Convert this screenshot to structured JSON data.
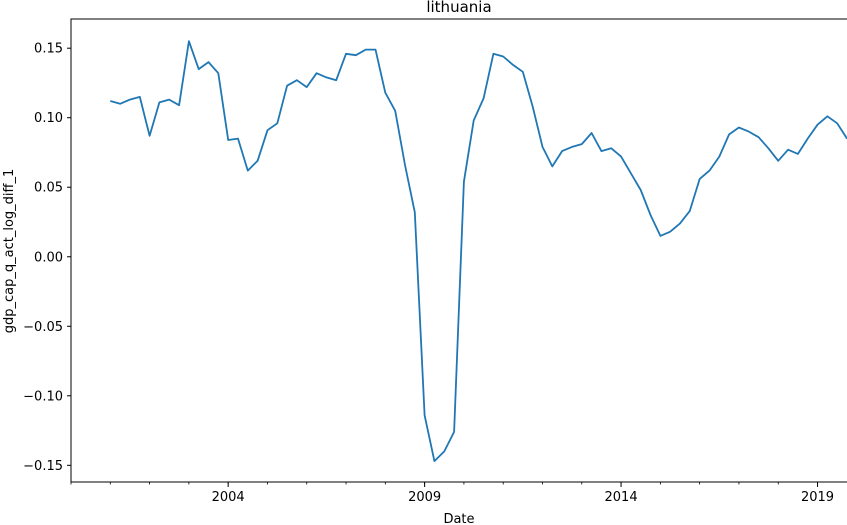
{
  "chart_data": {
    "type": "line",
    "title": "lithuania",
    "xlabel": "Date",
    "ylabel": "gdp_cap_q_act_log_diff_1",
    "x_ticks": [
      {
        "label": "2004",
        "year": 2004.0
      },
      {
        "label": "2009",
        "year": 2009.0
      },
      {
        "label": "2014",
        "year": 2014.0
      },
      {
        "label": "2019",
        "year": 2019.0
      }
    ],
    "y_ticks": [
      {
        "label": "0.15",
        "value": 0.15
      },
      {
        "label": "0.10",
        "value": 0.1
      },
      {
        "label": "0.05",
        "value": 0.05
      },
      {
        "label": "0.00",
        "value": 0.0
      },
      {
        "label": "−0.05",
        "value": -0.05
      },
      {
        "label": "−0.10",
        "value": -0.1
      },
      {
        "label": "−0.15",
        "value": -0.15
      }
    ],
    "xlim": [
      2000.0,
      2019.75
    ],
    "ylim": [
      -0.162,
      0.171
    ],
    "grid": false,
    "color": "#1f77b4",
    "series": [
      {
        "x": [
          2001.0,
          2001.25,
          2001.5,
          2001.75,
          2002.0,
          2002.25,
          2002.5,
          2002.75,
          2003.0,
          2003.25,
          2003.5,
          2003.75,
          2004.0,
          2004.25,
          2004.5,
          2004.75,
          2005.0,
          2005.25,
          2005.5,
          2005.75,
          2006.0,
          2006.25,
          2006.5,
          2006.75,
          2007.0,
          2007.25,
          2007.5,
          2007.75,
          2008.0,
          2008.25,
          2008.5,
          2008.75,
          2009.0,
          2009.25,
          2009.5,
          2009.75,
          2010.0,
          2010.25,
          2010.5,
          2010.75,
          2011.0,
          2011.25,
          2011.5,
          2011.75,
          2012.0,
          2012.25,
          2012.5,
          2012.75,
          2013.0,
          2013.25,
          2013.5,
          2013.75,
          2014.0,
          2014.25,
          2014.5,
          2014.75,
          2015.0,
          2015.25,
          2015.5,
          2015.75,
          2016.0,
          2016.25,
          2016.5,
          2016.75,
          2017.0,
          2017.25,
          2017.5,
          2017.75,
          2018.0,
          2018.25,
          2018.5,
          2018.75,
          2019.0,
          2019.25,
          2019.5,
          2019.75
        ],
        "y": [
          0.112,
          0.11,
          0.113,
          0.115,
          0.087,
          0.111,
          0.113,
          0.109,
          0.155,
          0.135,
          0.14,
          0.132,
          0.084,
          0.085,
          0.062,
          0.069,
          0.091,
          0.096,
          0.123,
          0.127,
          0.122,
          0.132,
          0.129,
          0.127,
          0.146,
          0.145,
          0.149,
          0.149,
          0.118,
          0.105,
          0.066,
          0.032,
          -0.114,
          -0.147,
          -0.14,
          -0.126,
          0.054,
          0.098,
          0.114,
          0.146,
          0.144,
          0.138,
          0.133,
          0.108,
          0.079,
          0.065,
          0.076,
          0.079,
          0.081,
          0.089,
          0.076,
          0.078,
          0.072,
          0.06,
          0.048,
          0.03,
          0.015,
          0.018,
          0.024,
          0.033,
          0.056,
          0.062,
          0.072,
          0.088,
          0.093,
          0.09,
          0.086,
          0.078,
          0.069,
          0.077,
          0.074,
          0.085,
          0.095,
          0.101,
          0.096,
          0.085
        ]
      }
    ]
  }
}
